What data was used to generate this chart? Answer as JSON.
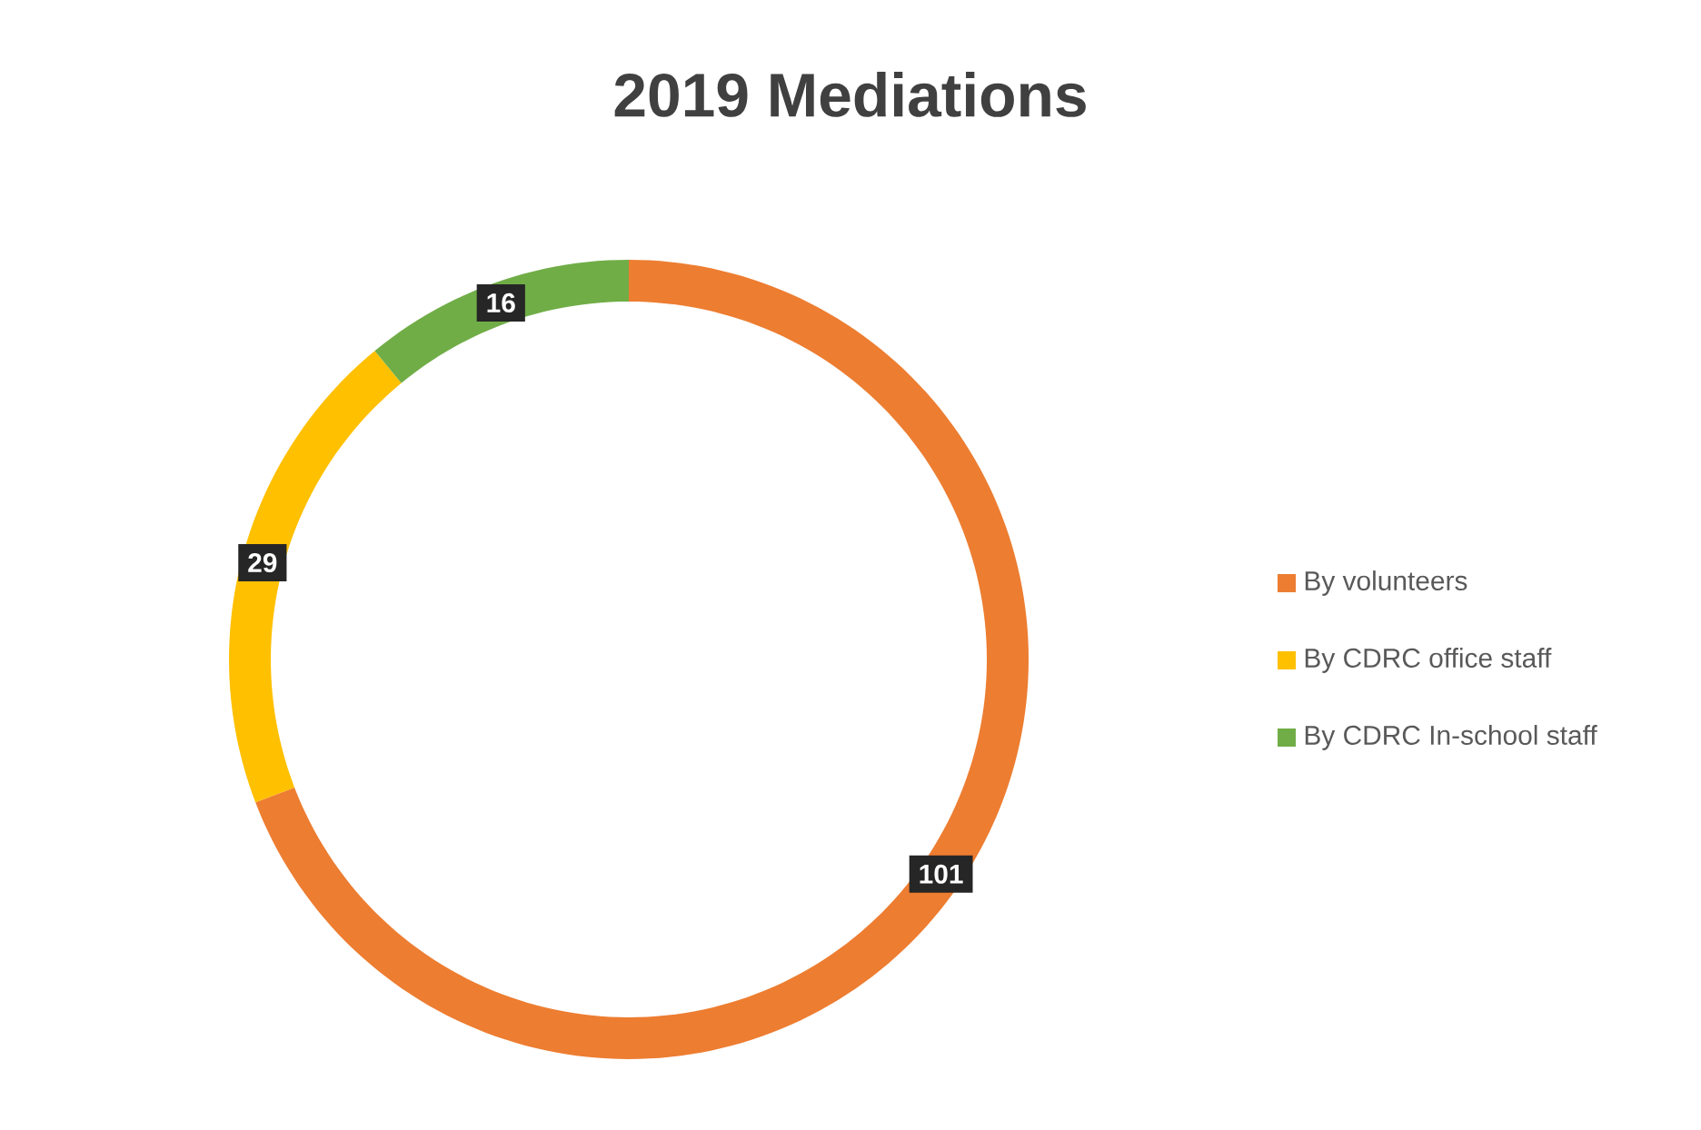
{
  "chart_data": {
    "type": "donut",
    "title": "2019 Mediations",
    "categories": [
      "By volunteers",
      "By CDRC office staff",
      "By CDRC In-school staff"
    ],
    "values": [
      101,
      29,
      16
    ],
    "colors": [
      "#ed7d31",
      "#ffc000",
      "#70ad47"
    ],
    "data_labels": true,
    "legend": "right"
  }
}
